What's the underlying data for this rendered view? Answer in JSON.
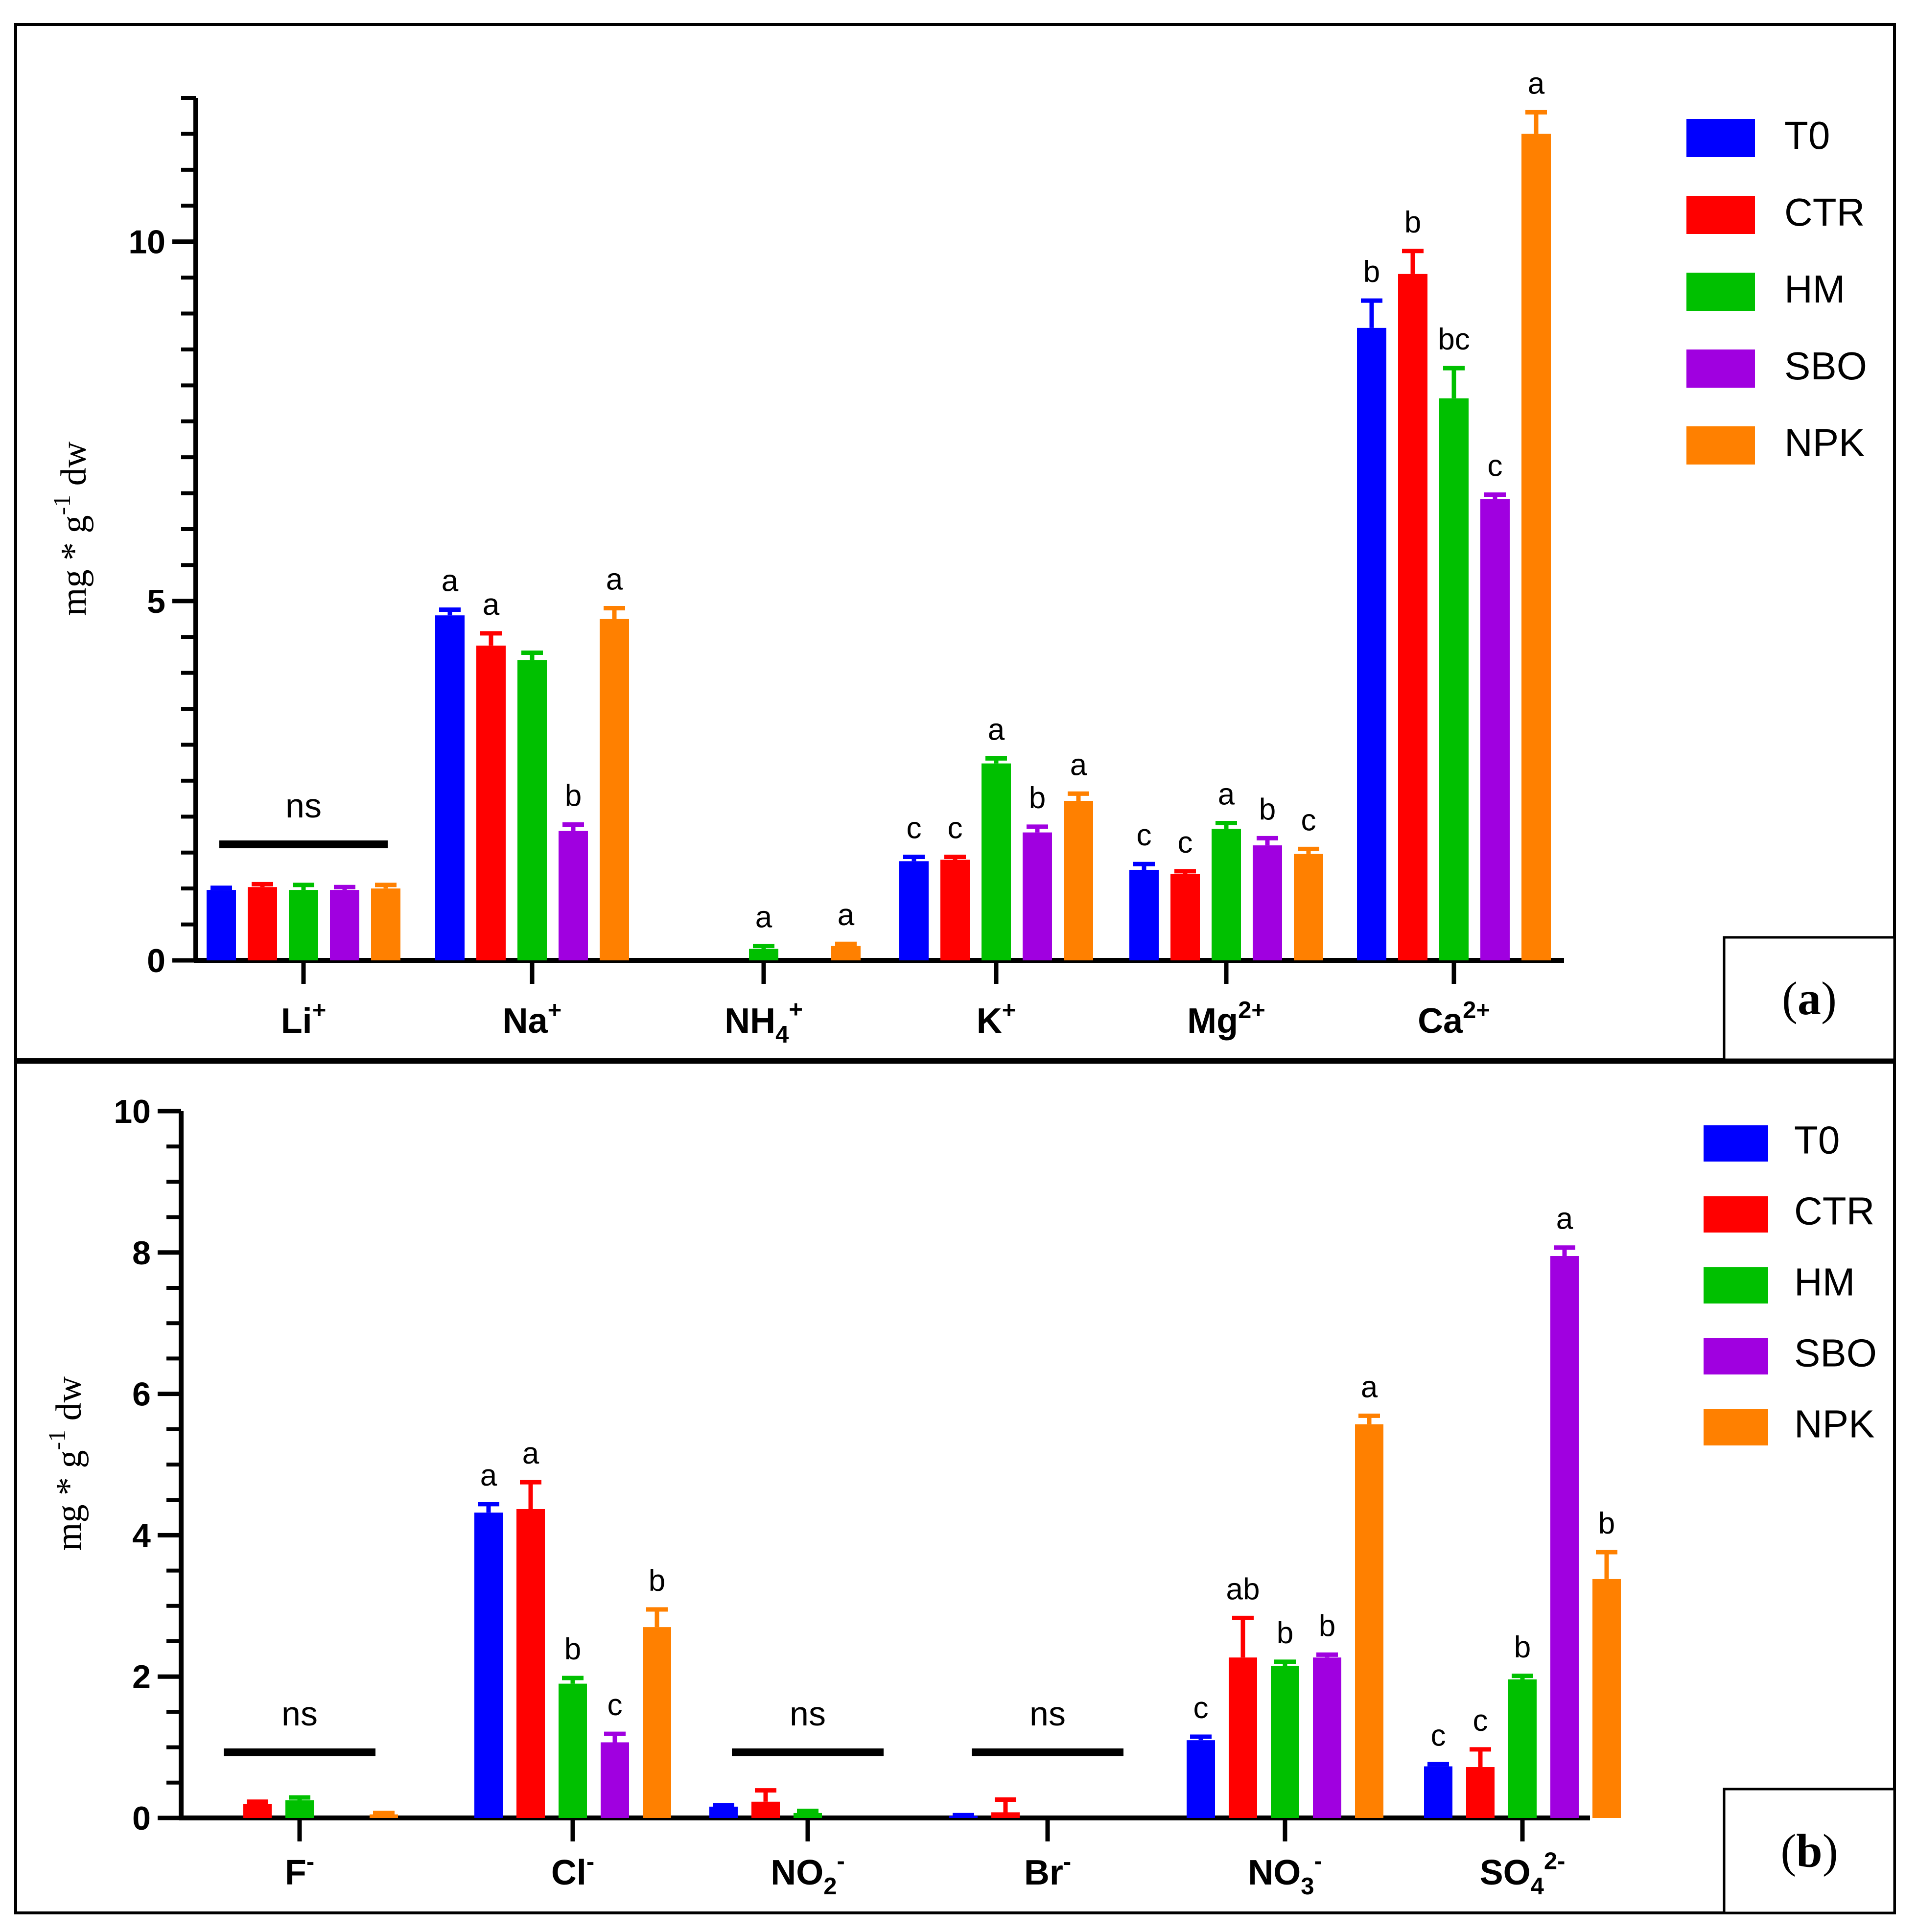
{
  "legend_colors": {
    "T0": "#0000ff",
    "CTR": "#ff0000",
    "HM": "#00c000",
    "SBO": "#a000e0",
    "NPK": "#ff8000"
  },
  "chart_data": [
    {
      "type": "bar",
      "panel_label": "a",
      "ylabel": "mg * g-1 dw",
      "ylim": [
        0,
        12
      ],
      "yticks": [
        0,
        5,
        10
      ],
      "categories": [
        {
          "base": "Li",
          "sub": "",
          "sup": "+"
        },
        {
          "base": "Na",
          "sub": "",
          "sup": "+"
        },
        {
          "base": "NH",
          "sub": "4",
          "sup": "+"
        },
        {
          "base": "K",
          "sub": "",
          "sup": "+"
        },
        {
          "base": "Mg",
          "sub": "",
          "sup": "2+"
        },
        {
          "base": "Ca",
          "sub": "",
          "sup": "2+"
        }
      ],
      "legend_position": "top-right",
      "series": [
        {
          "name": "T0",
          "values": [
            0.98,
            4.8,
            0,
            1.38,
            1.26,
            8.8
          ],
          "errors": [
            0.03,
            0.08,
            0,
            0.06,
            0.08,
            0.38
          ],
          "labels": [
            "",
            "a",
            "",
            "c",
            "c",
            "b"
          ]
        },
        {
          "name": "CTR",
          "values": [
            1.02,
            4.38,
            0,
            1.4,
            1.2,
            9.55
          ],
          "errors": [
            0.04,
            0.17,
            0,
            0.04,
            0.04,
            0.32
          ],
          "labels": [
            "",
            "a",
            "",
            "c",
            "c",
            "b"
          ]
        },
        {
          "name": "HM",
          "values": [
            0.98,
            4.18,
            0.16,
            2.74,
            1.83,
            7.82
          ],
          "errors": [
            0.07,
            0.1,
            0.04,
            0.07,
            0.08,
            0.42
          ],
          "labels": [
            "",
            "",
            "a",
            "a",
            "a",
            "bc"
          ]
        },
        {
          "name": "SBO",
          "values": [
            0.98,
            1.8,
            0,
            1.78,
            1.6,
            6.42
          ],
          "errors": [
            0.04,
            0.09,
            0,
            0.08,
            0.1,
            0.06
          ],
          "labels": [
            "",
            "b",
            "",
            "b",
            "b",
            "c"
          ]
        },
        {
          "name": "NPK",
          "values": [
            1.0,
            4.75,
            0.2,
            2.22,
            1.48,
            11.5
          ],
          "errors": [
            0.05,
            0.15,
            0.03,
            0.1,
            0.07,
            0.3
          ],
          "labels": [
            "",
            "a",
            "a",
            "a",
            "c",
            "a"
          ]
        }
      ],
      "ns_groups": [
        {
          "category_index": 0,
          "label": "ns"
        }
      ]
    },
    {
      "type": "bar",
      "panel_label": "b",
      "ylabel": "mg * g-1 dw",
      "ylim": [
        0,
        10
      ],
      "yticks": [
        0,
        2,
        4,
        6,
        8,
        10
      ],
      "categories": [
        {
          "base": "F",
          "sub": "",
          "sup": "-"
        },
        {
          "base": "Cl",
          "sub": "",
          "sup": "-"
        },
        {
          "base": "NO",
          "sub": "2",
          "sup": "-"
        },
        {
          "base": "Br",
          "sub": "",
          "sup": "-"
        },
        {
          "base": "NO",
          "sub": "3",
          "sup": "-"
        },
        {
          "base": "SO",
          "sub": "4",
          "sup": "2-"
        }
      ],
      "legend_position": "top-right",
      "series": [
        {
          "name": "T0",
          "values": [
            0,
            4.32,
            0.16,
            0.03,
            1.1,
            0.73
          ],
          "errors": [
            0,
            0.12,
            0.02,
            0.01,
            0.05,
            0.03
          ],
          "labels": [
            "",
            "a",
            "",
            "",
            "c",
            "c"
          ]
        },
        {
          "name": "CTR",
          "values": [
            0.2,
            4.37,
            0.23,
            0.08,
            2.27,
            0.72
          ],
          "errors": [
            0.03,
            0.38,
            0.16,
            0.18,
            0.56,
            0.25
          ],
          "labels": [
            "",
            "a",
            "",
            "",
            "ab",
            "c"
          ]
        },
        {
          "name": "HM",
          "values": [
            0.25,
            1.9,
            0.07,
            0,
            2.15,
            1.96
          ],
          "errors": [
            0.04,
            0.08,
            0.03,
            0,
            0.06,
            0.05
          ],
          "labels": [
            "",
            "b",
            "",
            "",
            "b",
            "b"
          ]
        },
        {
          "name": "SBO",
          "values": [
            0,
            1.07,
            0,
            0,
            2.27,
            7.95
          ],
          "errors": [
            0,
            0.12,
            0,
            0,
            0.04,
            0.12
          ],
          "labels": [
            "",
            "c",
            "",
            "",
            "b",
            "a"
          ]
        },
        {
          "name": "NPK",
          "values": [
            0.05,
            2.7,
            0,
            0,
            5.57,
            3.38
          ],
          "errors": [
            0.02,
            0.25,
            0,
            0,
            0.12,
            0.38
          ],
          "labels": [
            "",
            "b",
            "",
            "",
            "a",
            "b"
          ]
        }
      ],
      "ns_groups": [
        {
          "category_index": 0,
          "label": "ns"
        },
        {
          "category_index": 2,
          "label": "ns"
        },
        {
          "category_index": 3,
          "label": "ns"
        }
      ]
    }
  ]
}
